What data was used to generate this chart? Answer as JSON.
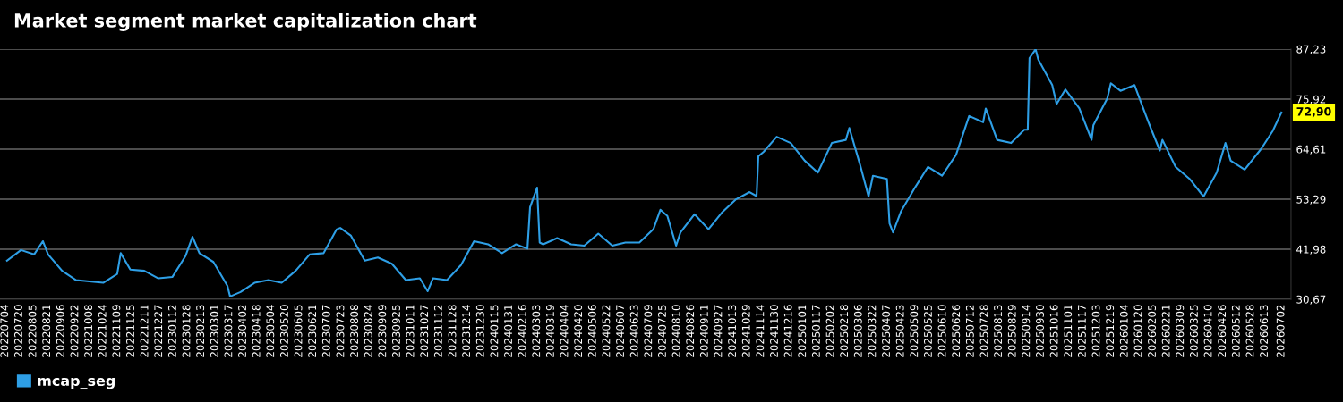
{
  "chart_data": {
    "type": "line",
    "title": "Market segment market capitalization chart",
    "x": [
      "2022-07-06",
      "2022-07-22",
      "2022-08-06",
      "2022-08-16",
      "2022-08-22",
      "2022-09-07",
      "2022-09-23",
      "2022-10-08",
      "2022-10-24",
      "2022-11-09",
      "2022-11-13",
      "2022-11-24",
      "2022-12-10",
      "2022-12-26",
      "2023-01-11",
      "2023-01-26",
      "2023-02-03",
      "2023-02-11",
      "2023-02-27",
      "2023-03-15",
      "2023-03-18",
      "2023-03-30",
      "2023-04-15",
      "2023-05-01",
      "2023-05-16",
      "2023-06-01",
      "2023-06-17",
      "2023-07-03",
      "2023-07-18",
      "2023-07-22",
      "2023-08-03",
      "2023-08-19",
      "2023-09-03",
      "2023-09-19",
      "2023-10-05",
      "2023-10-21",
      "2023-10-30",
      "2023-11-05",
      "2023-11-21",
      "2023-12-07",
      "2023-12-22",
      "2024-01-07",
      "2024-01-23",
      "2024-02-08",
      "2024-02-21",
      "2024-02-24",
      "2024-03-03",
      "2024-03-06",
      "2024-03-10",
      "2024-03-26",
      "2024-04-11",
      "2024-04-26",
      "2024-05-12",
      "2024-05-28",
      "2024-06-12",
      "2024-06-28",
      "2024-07-14",
      "2024-07-22",
      "2024-07-30",
      "2024-08-09",
      "2024-08-14",
      "2024-08-30",
      "2024-09-15",
      "2024-09-30",
      "2024-10-16",
      "2024-11-01",
      "2024-11-09",
      "2024-11-11",
      "2024-11-17",
      "2024-12-02",
      "2024-12-18",
      "2025-01-03",
      "2025-01-18",
      "2025-02-03",
      "2025-02-19",
      "2025-02-23",
      "2025-03-07",
      "2025-03-17",
      "2025-03-22",
      "2025-04-07",
      "2025-04-10",
      "2025-04-14",
      "2025-04-23",
      "2025-05-09",
      "2025-05-24",
      "2025-06-09",
      "2025-06-25",
      "2025-07-10",
      "2025-07-26",
      "2025-07-29",
      "2025-08-11",
      "2025-08-27",
      "2025-09-11",
      "2025-09-15",
      "2025-09-17",
      "2025-09-24",
      "2025-09-27",
      "2025-10-13",
      "2025-10-18",
      "2025-10-28",
      "2025-11-13",
      "2025-11-27",
      "2025-11-29",
      "2025-12-15",
      "2025-12-19",
      "2025-12-30",
      "2026-01-15",
      "2026-01-31",
      "2026-02-13",
      "2026-02-16",
      "2026-03-03",
      "2026-03-19",
      "2026-04-04",
      "2026-04-19",
      "2026-04-29",
      "2026-05-05",
      "2026-05-21",
      "2026-06-09",
      "2026-06-22",
      "2026-07-02"
    ],
    "series": [
      {
        "name": "mcap_seg",
        "color": "#2e9fe6",
        "values": [
          39.4,
          41.8,
          40.8,
          43.8,
          40.8,
          37.1,
          35.0,
          34.7,
          34.4,
          36.4,
          41.1,
          37.4,
          37.1,
          35.4,
          35.7,
          40.4,
          44.8,
          41.1,
          39.1,
          33.7,
          31.3,
          32.3,
          34.4,
          35.0,
          34.4,
          37.1,
          40.8,
          41.1,
          46.5,
          46.8,
          45.1,
          39.4,
          40.1,
          38.7,
          35.0,
          35.4,
          32.5,
          35.4,
          35.0,
          38.4,
          43.8,
          43.1,
          41.1,
          43.1,
          42.1,
          51.5,
          55.9,
          43.5,
          43.1,
          44.5,
          43.1,
          42.8,
          45.5,
          42.8,
          43.5,
          43.5,
          46.5,
          50.9,
          49.5,
          42.8,
          45.8,
          49.9,
          46.5,
          50.2,
          53.2,
          54.9,
          54.0,
          63.0,
          64.0,
          67.4,
          66.0,
          62.0,
          59.3,
          66.0,
          66.7,
          69.4,
          61.3,
          53.9,
          58.6,
          57.9,
          47.8,
          45.8,
          50.5,
          55.9,
          60.6,
          58.6,
          63.3,
          72.1,
          70.7,
          73.8,
          66.7,
          66.0,
          69.0,
          69.0,
          85.2,
          87.2,
          84.9,
          79.1,
          74.8,
          78.1,
          73.8,
          66.7,
          70.0,
          76.1,
          79.5,
          77.8,
          79.1,
          70.7,
          64.3,
          66.7,
          60.6,
          57.9,
          53.9,
          59.3,
          66.0,
          62.0,
          60.0,
          64.7,
          68.7,
          72.9
        ]
      }
    ],
    "xlim": [
      "2022-06-28",
      "2026-07-13"
    ],
    "xticks": [
      {
        "value": "2022-07-04",
        "label": "20220704"
      },
      {
        "value": "2022-07-20",
        "label": "20220720"
      },
      {
        "value": "2022-08-05",
        "label": "20220805"
      },
      {
        "value": "2022-08-21",
        "label": "20220821"
      },
      {
        "value": "2022-09-06",
        "label": "20220906"
      },
      {
        "value": "2022-09-22",
        "label": "20220922"
      },
      {
        "value": "2022-10-08",
        "label": "20221008"
      },
      {
        "value": "2022-10-24",
        "label": "20221024"
      },
      {
        "value": "2022-11-09",
        "label": "20221109"
      },
      {
        "value": "2022-11-25",
        "label": "20221125"
      },
      {
        "value": "2022-12-11",
        "label": "20221211"
      },
      {
        "value": "2022-12-27",
        "label": "20221227"
      },
      {
        "value": "2023-01-12",
        "label": "20230112"
      },
      {
        "value": "2023-01-28",
        "label": "20230128"
      },
      {
        "value": "2023-02-13",
        "label": "20230213"
      },
      {
        "value": "2023-03-01",
        "label": "20230301"
      },
      {
        "value": "2023-03-17",
        "label": "20230317"
      },
      {
        "value": "2023-04-02",
        "label": "20230402"
      },
      {
        "value": "2023-04-18",
        "label": "20230418"
      },
      {
        "value": "2023-05-04",
        "label": "20230504"
      },
      {
        "value": "2023-05-20",
        "label": "20230520"
      },
      {
        "value": "2023-06-05",
        "label": "20230605"
      },
      {
        "value": "2023-06-21",
        "label": "20230621"
      },
      {
        "value": "2023-07-07",
        "label": "20230707"
      },
      {
        "value": "2023-07-23",
        "label": "20230723"
      },
      {
        "value": "2023-08-08",
        "label": "20230808"
      },
      {
        "value": "2023-08-24",
        "label": "20230824"
      },
      {
        "value": "2023-09-09",
        "label": "20230909"
      },
      {
        "value": "2023-09-25",
        "label": "20230925"
      },
      {
        "value": "2023-10-11",
        "label": "20231011"
      },
      {
        "value": "2023-10-27",
        "label": "20231027"
      },
      {
        "value": "2023-11-12",
        "label": "20231112"
      },
      {
        "value": "2023-11-28",
        "label": "20231128"
      },
      {
        "value": "2023-12-14",
        "label": "20231214"
      },
      {
        "value": "2023-12-30",
        "label": "20231230"
      },
      {
        "value": "2024-01-15",
        "label": "20240115"
      },
      {
        "value": "2024-01-31",
        "label": "20240131"
      },
      {
        "value": "2024-02-16",
        "label": "20240216"
      },
      {
        "value": "2024-03-03",
        "label": "20240303"
      },
      {
        "value": "2024-03-19",
        "label": "20240319"
      },
      {
        "value": "2024-04-04",
        "label": "20240404"
      },
      {
        "value": "2024-04-20",
        "label": "20240420"
      },
      {
        "value": "2024-05-06",
        "label": "20240506"
      },
      {
        "value": "2024-05-22",
        "label": "20240522"
      },
      {
        "value": "2024-06-07",
        "label": "20240607"
      },
      {
        "value": "2024-06-23",
        "label": "20240623"
      },
      {
        "value": "2024-07-09",
        "label": "20240709"
      },
      {
        "value": "2024-07-25",
        "label": "20240725"
      },
      {
        "value": "2024-08-10",
        "label": "20240810"
      },
      {
        "value": "2024-08-26",
        "label": "20240826"
      },
      {
        "value": "2024-09-11",
        "label": "20240911"
      },
      {
        "value": "2024-09-27",
        "label": "20240927"
      },
      {
        "value": "2024-10-13",
        "label": "20241013"
      },
      {
        "value": "2024-10-29",
        "label": "20241029"
      },
      {
        "value": "2024-11-14",
        "label": "20241114"
      },
      {
        "value": "2024-11-30",
        "label": "20241130"
      },
      {
        "value": "2024-12-16",
        "label": "20241216"
      },
      {
        "value": "2025-01-01",
        "label": "20250101"
      },
      {
        "value": "2025-01-17",
        "label": "20250117"
      },
      {
        "value": "2025-02-02",
        "label": "20250202"
      },
      {
        "value": "2025-02-18",
        "label": "20250218"
      },
      {
        "value": "2025-03-06",
        "label": "20250306"
      },
      {
        "value": "2025-03-22",
        "label": "20250322"
      },
      {
        "value": "2025-04-07",
        "label": "20250407"
      },
      {
        "value": "2025-04-23",
        "label": "20250423"
      },
      {
        "value": "2025-05-09",
        "label": "20250509"
      },
      {
        "value": "2025-05-25",
        "label": "20250525"
      },
      {
        "value": "2025-06-10",
        "label": "20250610"
      },
      {
        "value": "2025-06-26",
        "label": "20250626"
      },
      {
        "value": "2025-07-12",
        "label": "20250712"
      },
      {
        "value": "2025-07-28",
        "label": "20250728"
      },
      {
        "value": "2025-08-13",
        "label": "20250813"
      },
      {
        "value": "2025-08-29",
        "label": "20250829"
      },
      {
        "value": "2025-09-14",
        "label": "20250914"
      },
      {
        "value": "2025-09-30",
        "label": "20250930"
      },
      {
        "value": "2025-10-16",
        "label": "20251016"
      },
      {
        "value": "2025-11-01",
        "label": "20251101"
      },
      {
        "value": "2025-11-17",
        "label": "20251117"
      },
      {
        "value": "2025-12-03",
        "label": "20251203"
      },
      {
        "value": "2025-12-19",
        "label": "20251219"
      },
      {
        "value": "2026-01-04",
        "label": "20260104"
      },
      {
        "value": "2026-01-20",
        "label": "20260120"
      },
      {
        "value": "2026-02-05",
        "label": "20260205"
      },
      {
        "value": "2026-02-21",
        "label": "20260221"
      },
      {
        "value": "2026-03-09",
        "label": "20260309"
      },
      {
        "value": "2026-03-25",
        "label": "20260325"
      },
      {
        "value": "2026-04-10",
        "label": "20260410"
      },
      {
        "value": "2026-04-26",
        "label": "20260426"
      },
      {
        "value": "2026-05-12",
        "label": "20260512"
      },
      {
        "value": "2026-05-28",
        "label": "20260528"
      },
      {
        "value": "2026-06-13",
        "label": "20260613"
      },
      {
        "value": "2026-07-02",
        "label": "20260702"
      }
    ],
    "ylim": [
      30.67,
      87.23
    ],
    "yticks": [
      {
        "value": 30.67,
        "label": "30,67"
      },
      {
        "value": 41.98,
        "label": "41,98"
      },
      {
        "value": 53.29,
        "label": "53,29"
      },
      {
        "value": 64.61,
        "label": "64,61"
      },
      {
        "value": 75.92,
        "label": "75,92"
      },
      {
        "value": 87.23,
        "label": "87,23"
      }
    ],
    "grid": "y",
    "legend": "bottom left",
    "annotations": [
      {
        "text": "72,90",
        "x": "2026-07-02",
        "y": 72.9
      }
    ]
  }
}
